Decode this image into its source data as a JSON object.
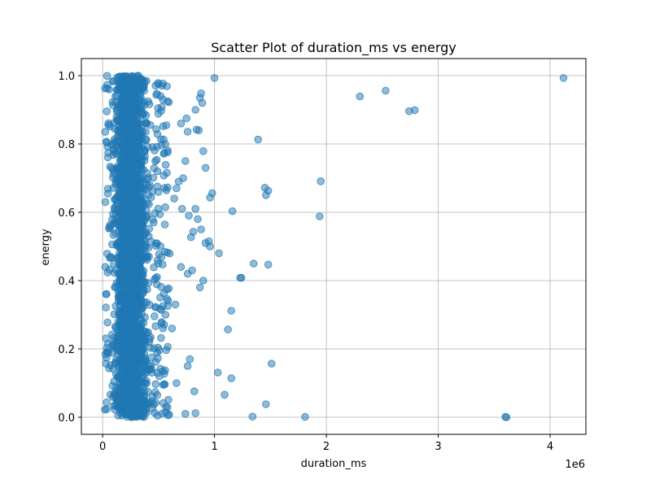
{
  "chart_data": {
    "type": "scatter",
    "title": "Scatter Plot of duration_ms vs energy",
    "xlabel": "duration_ms",
    "ylabel": "energy",
    "x_offset_label": "1e6",
    "xlim": [
      -190000,
      4320000
    ],
    "ylim": [
      -0.05,
      1.05
    ],
    "x_ticks": [
      0,
      1000000,
      2000000,
      3000000,
      4000000
    ],
    "x_tick_labels": [
      "0",
      "1",
      "2",
      "3",
      "4"
    ],
    "y_ticks": [
      0.0,
      0.2,
      0.4,
      0.6,
      0.8,
      1.0
    ],
    "y_tick_labels": [
      "0.0",
      "0.2",
      "0.4",
      "0.6",
      "0.8",
      "1.0"
    ],
    "grid": true,
    "marker_color": "#1f77b4",
    "marker_alpha": 0.5,
    "dense_core": {
      "x_range": [
        20000,
        600000
      ],
      "y_range": [
        0.0,
        1.0
      ],
      "peak_x": 220000,
      "point_count": 2600
    },
    "series": [
      {
        "x": [
          4120000,
          2530000,
          2790000,
          2740000,
          2300000,
          1390000,
          1450000,
          1480000,
          1460000,
          1950000,
          1940000,
          1160000,
          1000000,
          980000,
          960000,
          1040000,
          1350000,
          1480000,
          1240000,
          1230000,
          1150000,
          1120000,
          1510000,
          1030000,
          1150000,
          1090000,
          1460000,
          1340000,
          1810000,
          3600000,
          3610000,
          880000,
          870000,
          890000,
          830000,
          860000,
          840000,
          760000,
          750000,
          700000,
          900000,
          920000,
          950000,
          810000,
          790000,
          740000,
          720000,
          680000,
          660000,
          640000,
          710000,
          770000,
          830000,
          850000,
          880000,
          920000,
          960000,
          900000,
          870000,
          800000,
          760000,
          700000,
          650000,
          620000,
          780000,
          820000,
          740000,
          660000,
          760000,
          830000
        ],
        "y": [
          0.993,
          0.956,
          0.899,
          0.896,
          0.939,
          0.813,
          0.672,
          0.663,
          0.65,
          0.691,
          0.588,
          0.603,
          0.993,
          0.656,
          0.643,
          0.48,
          0.45,
          0.447,
          0.408,
          0.408,
          0.312,
          0.257,
          0.157,
          0.131,
          0.114,
          0.066,
          0.038,
          0.002,
          0.001,
          0.001,
          0.0,
          0.948,
          0.935,
          0.92,
          0.9,
          0.84,
          0.842,
          0.836,
          0.875,
          0.86,
          0.779,
          0.73,
          0.515,
          0.543,
          0.527,
          0.75,
          0.7,
          0.69,
          0.67,
          0.64,
          0.61,
          0.59,
          0.61,
          0.58,
          0.55,
          0.51,
          0.5,
          0.4,
          0.38,
          0.43,
          0.42,
          0.44,
          0.33,
          0.26,
          0.17,
          0.076,
          0.01,
          0.1,
          0.15,
          0.012
        ]
      }
    ]
  }
}
